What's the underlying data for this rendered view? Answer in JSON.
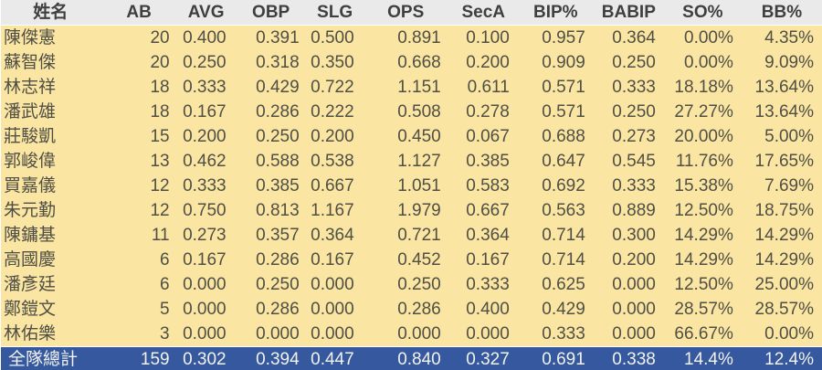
{
  "table": {
    "columns": [
      "姓名",
      "AB",
      "AVG",
      "OBP",
      "SLG",
      "OPS",
      "SecA",
      "BIP%",
      "BABIP",
      "SO%",
      "BB%"
    ],
    "column_ids": [
      "name",
      "ab",
      "avg",
      "obp",
      "slg",
      "ops",
      "seca",
      "bip-pct",
      "babip",
      "so-pct",
      "bb-pct"
    ],
    "rows": [
      [
        "陳傑憲",
        "20",
        "0.400",
        "0.391",
        "0.500",
        "0.891",
        "0.100",
        "0.957",
        "0.364",
        "0.00%",
        "4.35%"
      ],
      [
        "蘇智傑",
        "20",
        "0.250",
        "0.318",
        "0.350",
        "0.668",
        "0.200",
        "0.909",
        "0.250",
        "0.00%",
        "9.09%"
      ],
      [
        "林志祥",
        "18",
        "0.333",
        "0.429",
        "0.722",
        "1.151",
        "0.611",
        "0.571",
        "0.333",
        "18.18%",
        "13.64%"
      ],
      [
        "潘武雄",
        "18",
        "0.167",
        "0.286",
        "0.222",
        "0.508",
        "0.278",
        "0.571",
        "0.250",
        "27.27%",
        "13.64%"
      ],
      [
        "莊駿凱",
        "15",
        "0.200",
        "0.250",
        "0.200",
        "0.450",
        "0.067",
        "0.688",
        "0.273",
        "20.00%",
        "5.00%"
      ],
      [
        "郭峻偉",
        "13",
        "0.462",
        "0.588",
        "0.538",
        "1.127",
        "0.385",
        "0.647",
        "0.545",
        "11.76%",
        "17.65%"
      ],
      [
        "買嘉儀",
        "12",
        "0.333",
        "0.385",
        "0.667",
        "1.051",
        "0.583",
        "0.692",
        "0.333",
        "15.38%",
        "7.69%"
      ],
      [
        "朱元勤",
        "12",
        "0.750",
        "0.813",
        "1.167",
        "1.979",
        "0.667",
        "0.563",
        "0.889",
        "12.50%",
        "18.75%"
      ],
      [
        "陳鏞基",
        "11",
        "0.273",
        "0.357",
        "0.364",
        "0.721",
        "0.364",
        "0.714",
        "0.300",
        "14.29%",
        "14.29%"
      ],
      [
        "高國慶",
        "6",
        "0.167",
        "0.286",
        "0.167",
        "0.452",
        "0.167",
        "0.714",
        "0.200",
        "14.29%",
        "14.29%"
      ],
      [
        "潘彥廷",
        "6",
        "0.000",
        "0.250",
        "0.000",
        "0.250",
        "0.333",
        "0.625",
        "0.000",
        "12.50%",
        "25.00%"
      ],
      [
        "鄭鎧文",
        "5",
        "0.000",
        "0.286",
        "0.000",
        "0.286",
        "0.400",
        "0.429",
        "0.000",
        "28.57%",
        "28.57%"
      ],
      [
        "林佑樂",
        "3",
        "0.000",
        "0.000",
        "0.000",
        "0.000",
        "0.000",
        "0.333",
        "0.000",
        "66.67%",
        "0.00%"
      ]
    ],
    "total": [
      "全隊總計",
      "159",
      "0.302",
      "0.394",
      "0.447",
      "0.840",
      "0.327",
      "0.691",
      "0.338",
      "14.4%",
      "12.4%"
    ],
    "colors": {
      "header_bg": "#EAEAEA",
      "header_text": "#3F3F3F",
      "row_bg": "#FBE5A2",
      "row_text": "#4F4F45",
      "total_bg": "#36589E",
      "total_text": "#F2F2EE"
    }
  }
}
